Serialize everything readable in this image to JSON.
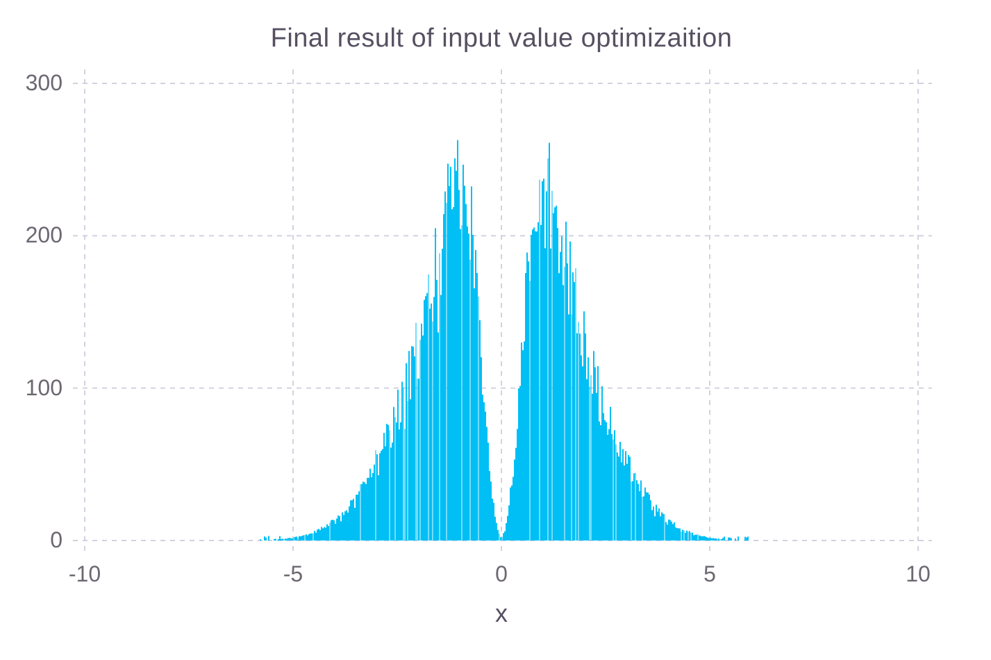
{
  "chart_data": {
    "type": "bar",
    "subtype": "histogram",
    "title": "Final result of input value optimizaition",
    "xlabel": "x",
    "ylabel": "",
    "xlim": [
      -10,
      10
    ],
    "ylim": [
      0,
      300
    ],
    "xticks": [
      -10,
      -5,
      0,
      5,
      10
    ],
    "xtick_labels": [
      "-10",
      "-5",
      "0",
      "5",
      "10"
    ],
    "yticks": [
      0,
      100,
      200,
      300
    ],
    "ytick_labels": [
      "0",
      "100",
      "200",
      "300"
    ],
    "grid": {
      "visible": true,
      "style": "dashed",
      "color": "#d2d2e0",
      "dash": [
        7,
        7
      ],
      "stroke_width": 2
    },
    "legend": null,
    "colors": {
      "bar": "#00BFF5",
      "background": "#ffffff",
      "title_text": "#565061",
      "tick_text": "#6c6771",
      "axis_label_text": "#565061"
    },
    "distribution": {
      "summary": "Symmetric bimodal histogram: two mirrored lobes about x=0 separated by a V-shaped notch that reaches ~0 counts at x=0; spiky thin bins; left peak ~267 counts near x=-0.9, right peak ~262 counts near x=+0.87; counts fall smoothly to ~0 by |x|=5 with sparse single-count bins out to |x|=6",
      "bins": {
        "range": [
          -6,
          6
        ],
        "count": 360,
        "width": 0.0333
      },
      "envelope_points": [
        [
          0.0,
          1
        ],
        [
          0.1,
          8
        ],
        [
          0.2,
          26
        ],
        [
          0.3,
          50
        ],
        [
          0.4,
          82
        ],
        [
          0.5,
          118
        ],
        [
          0.6,
          158
        ],
        [
          0.7,
          196
        ],
        [
          0.8,
          222
        ],
        [
          0.9,
          233
        ],
        [
          1.0,
          234
        ],
        [
          1.1,
          229
        ],
        [
          1.2,
          221
        ],
        [
          1.35,
          207
        ],
        [
          1.5,
          186
        ],
        [
          1.75,
          158
        ],
        [
          2.0,
          128
        ],
        [
          2.25,
          104
        ],
        [
          2.5,
          84
        ],
        [
          2.75,
          66
        ],
        [
          3.0,
          52
        ],
        [
          3.25,
          38
        ],
        [
          3.5,
          28
        ],
        [
          3.75,
          19
        ],
        [
          4.0,
          13
        ],
        [
          4.25,
          8.5
        ],
        [
          4.5,
          5.5
        ],
        [
          4.75,
          3.2
        ],
        [
          5.0,
          1.8
        ],
        [
          5.25,
          1.0
        ],
        [
          5.5,
          0.5
        ],
        [
          5.75,
          0.25
        ],
        [
          6.0,
          0.1
        ]
      ],
      "noise": {
        "sigma": 0.13,
        "clip": [
          0.72,
          1.16
        ],
        "light_bar_fraction": 0.14,
        "light_bar_opacity": 0.55
      },
      "seed": 987,
      "peaks": {
        "left_peak_x": -0.9,
        "left_max_count": 267,
        "right_peak_x": 0.87,
        "right_max_count": 262
      }
    }
  }
}
